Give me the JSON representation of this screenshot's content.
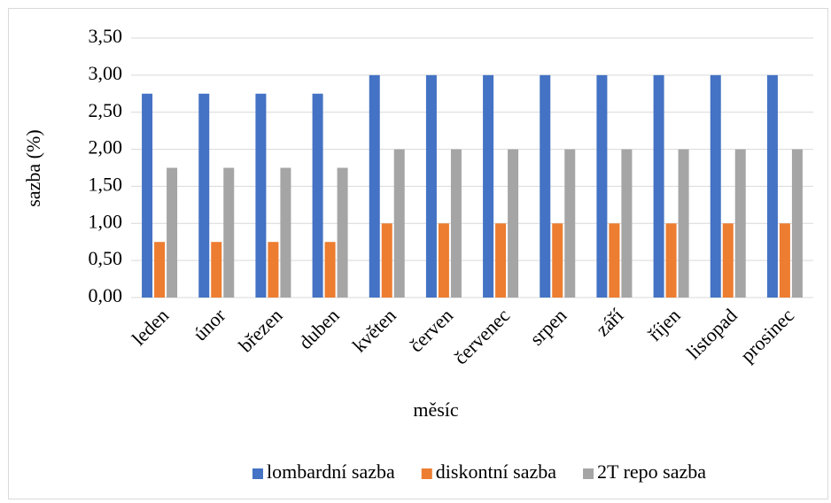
{
  "chart_data": {
    "type": "bar",
    "categories": [
      "leden",
      "únor",
      "březen",
      "duben",
      "květen",
      "červen",
      "červenec",
      "srpen",
      "září",
      "říjen",
      "listopad",
      "prosinec"
    ],
    "series": [
      {
        "name": "lombardní sazba",
        "color": "#4472c4",
        "values": [
          2.75,
          2.75,
          2.75,
          2.75,
          3,
          3,
          3,
          3,
          3,
          3,
          3,
          3
        ]
      },
      {
        "name": "diskontní sazba",
        "color": "#ed7d31",
        "values": [
          0.75,
          0.75,
          0.75,
          0.75,
          1,
          1,
          1,
          1,
          1,
          1,
          1,
          1
        ]
      },
      {
        "name": "2T repo sazba",
        "color": "#a5a5a5",
        "values": [
          1.75,
          1.75,
          1.75,
          1.75,
          2,
          2,
          2,
          2,
          2,
          2,
          2,
          2
        ]
      }
    ],
    "xlabel": "měsíc",
    "ylabel": "sazba (%)",
    "ylim": [
      0,
      3.5
    ],
    "yticks": [
      {
        "value": 0,
        "label": "0,00"
      },
      {
        "value": 0.5,
        "label": "0,50"
      },
      {
        "value": 1,
        "label": "1,00"
      },
      {
        "value": 1.5,
        "label": "1,50"
      },
      {
        "value": 2,
        "label": "2,00"
      },
      {
        "value": 2.5,
        "label": "2,50"
      },
      {
        "value": 3,
        "label": "3,00"
      },
      {
        "value": 3.5,
        "label": "3,50"
      }
    ],
    "grid": true,
    "legend": "bottom"
  }
}
